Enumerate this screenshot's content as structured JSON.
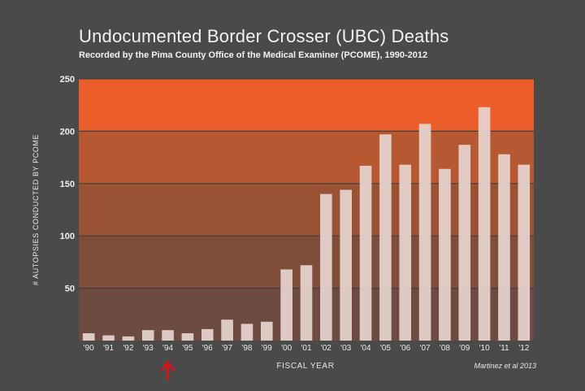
{
  "chart_data": {
    "type": "bar",
    "title": "Undocumented Border Crosser (UBC) Deaths",
    "subtitle": "Recorded by the Pima County Office of the Medical Examiner (PCOME), 1990-2012",
    "xlabel": "FISCAL YEAR",
    "ylabel": "# AUTOPSIES CONDUCTED BY PCOME",
    "source": "Martinez et al 2013",
    "ylim": [
      0,
      250
    ],
    "yticks": [
      50,
      100,
      150,
      200,
      250
    ],
    "categories": [
      "'90",
      "'91",
      "'92",
      "'93",
      "'94",
      "'95",
      "'96",
      "'97",
      "'98",
      "'99",
      "'00",
      "'01",
      "'02",
      "'03",
      "'04",
      "'05",
      "'06",
      "'07",
      "'08",
      "'09",
      "'10",
      "'11",
      "'12"
    ],
    "values": [
      7,
      5,
      4,
      10,
      10,
      7,
      11,
      20,
      16,
      18,
      68,
      72,
      140,
      144,
      167,
      197,
      168,
      207,
      164,
      187,
      223,
      178,
      168
    ],
    "band_colors": [
      "#6e4b40",
      "#7e4e3a",
      "#9a5234",
      "#b65831",
      "#eb5e2a"
    ],
    "bar_color": "#e6d4cf",
    "marker": {
      "category": "'94",
      "color": "#d8141b",
      "icon": "up-arrow-icon"
    }
  }
}
